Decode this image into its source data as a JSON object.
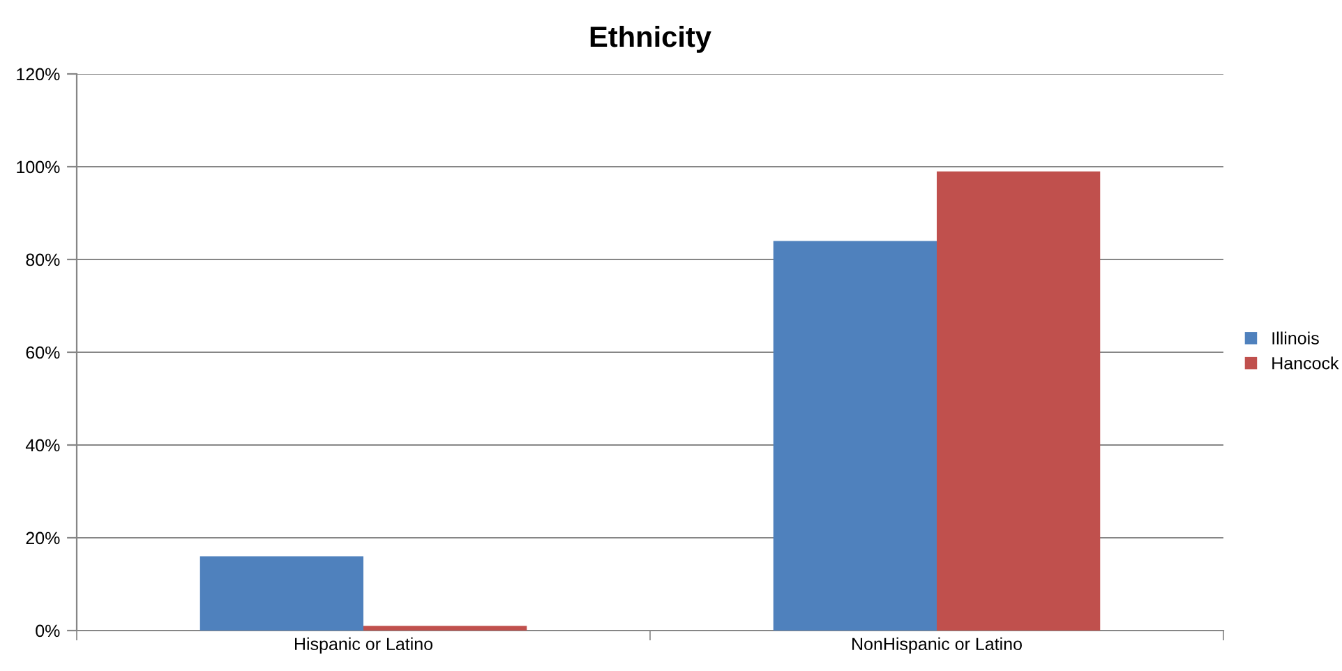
{
  "chart_data": {
    "type": "bar",
    "title": "Ethnicity",
    "categories": [
      "Hispanic or Latino",
      "NonHispanic or Latino"
    ],
    "series": [
      {
        "name": "Illinois",
        "color": "#4f81bd",
        "values": [
          16,
          84
        ]
      },
      {
        "name": "Hancock",
        "color": "#c0504d",
        "values": [
          1,
          99
        ]
      }
    ],
    "ylim": [
      0,
      120
    ],
    "yticks": [
      {
        "value": 0,
        "label": "0%"
      },
      {
        "value": 20,
        "label": "20%"
      },
      {
        "value": 40,
        "label": "40%"
      },
      {
        "value": 60,
        "label": "60%"
      },
      {
        "value": 80,
        "label": "80%"
      },
      {
        "value": 100,
        "label": "100%"
      },
      {
        "value": 120,
        "label": "120%"
      }
    ],
    "grid": "y",
    "legend": "right"
  }
}
